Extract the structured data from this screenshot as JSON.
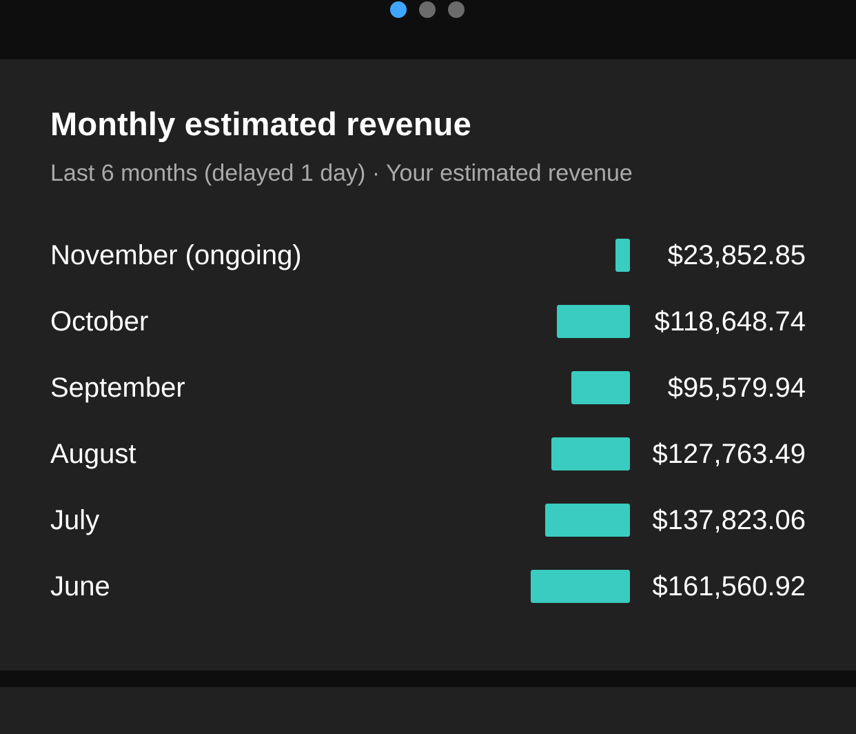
{
  "pager": {
    "pages": 3,
    "active_index": 0,
    "active_color": "#3ea6ff",
    "inactive_color": "#6b6b6b"
  },
  "card": {
    "title": "Monthly estimated revenue",
    "subtitle": "Last 6 months (delayed 1 day) · Your estimated revenue"
  },
  "accent_color": "#3accc0",
  "chart_data": {
    "type": "bar",
    "categories": [
      "November (ongoing)",
      "October",
      "September",
      "August",
      "July",
      "June"
    ],
    "values": [
      23852.85,
      118648.74,
      95579.94,
      127763.49,
      137823.06,
      161560.92
    ],
    "value_labels": [
      "$23,852.85",
      "$118,648.74",
      "$95,579.94",
      "$127,763.49",
      "$137,823.06",
      "$161,560.92"
    ],
    "title": "Monthly estimated revenue"
  }
}
